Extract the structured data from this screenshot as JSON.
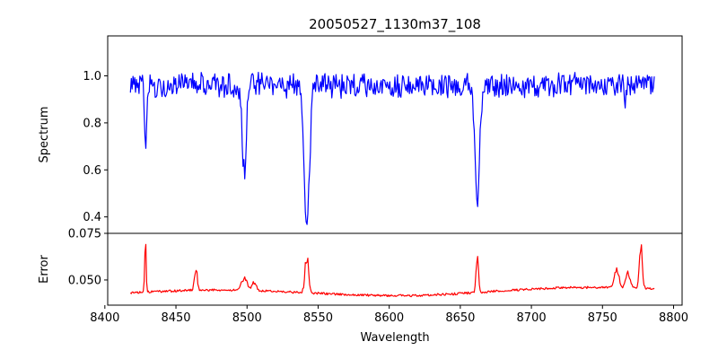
{
  "chart_data": [
    {
      "type": "line",
      "panel": "spectrum",
      "title": "20050527_1130m37_108",
      "xlabel": "",
      "ylabel": "Spectrum",
      "xlim": [
        8402,
        8806
      ],
      "ylim": [
        0.33,
        1.17
      ],
      "yticks": [
        0.4,
        0.6,
        0.8,
        1.0
      ],
      "ytick_labels": [
        "0.4",
        "0.6",
        "0.8",
        "1.0"
      ],
      "grid": false,
      "color": "#0000ff",
      "baseline": 0.96,
      "noise": 0.045,
      "range": [
        8418,
        8787
      ],
      "features": [
        {
          "center": 8428.5,
          "depth": 0.27,
          "width": 0.7
        },
        {
          "center": 8498.0,
          "depth": 0.37,
          "width": 1.4
        },
        {
          "center": 8542.0,
          "depth": 0.58,
          "width": 1.9
        },
        {
          "center": 8662.0,
          "depth": 0.49,
          "width": 1.6
        },
        {
          "center": 8766.0,
          "depth": 0.07,
          "width": 0.6
        }
      ]
    },
    {
      "type": "line",
      "panel": "error",
      "title": "",
      "xlabel": "Wavelength",
      "ylabel": "Error",
      "xlim": [
        8402,
        8806
      ],
      "ylim": [
        0.0365,
        0.075
      ],
      "xticks": [
        8400,
        8450,
        8500,
        8550,
        8600,
        8650,
        8700,
        8750,
        8800
      ],
      "xtick_labels": [
        "8400",
        "8450",
        "8500",
        "8550",
        "8600",
        "8650",
        "8700",
        "8750",
        "8800"
      ],
      "yticks": [
        0.05,
        0.075
      ],
      "ytick_labels": [
        "0.050",
        "0.075"
      ],
      "grid": false,
      "color": "#ff0000",
      "baseline": 0.0425,
      "noise": 0.0012,
      "range": [
        8418,
        8787
      ],
      "features": [
        {
          "center": 8428.5,
          "height": 0.031,
          "width": 0.5
        },
        {
          "center": 8464.0,
          "height": 0.013,
          "width": 1.0
        },
        {
          "center": 8498.0,
          "height": 0.008,
          "width": 2.0
        },
        {
          "center": 8505.0,
          "height": 0.005,
          "width": 1.5
        },
        {
          "center": 8542.0,
          "height": 0.024,
          "width": 1.2
        },
        {
          "center": 8662.0,
          "height": 0.025,
          "width": 0.8
        },
        {
          "center": 8760.0,
          "height": 0.012,
          "width": 1.5
        },
        {
          "center": 8768.0,
          "height": 0.01,
          "width": 1.5
        },
        {
          "center": 8777.0,
          "height": 0.028,
          "width": 1.0
        }
      ]
    }
  ]
}
